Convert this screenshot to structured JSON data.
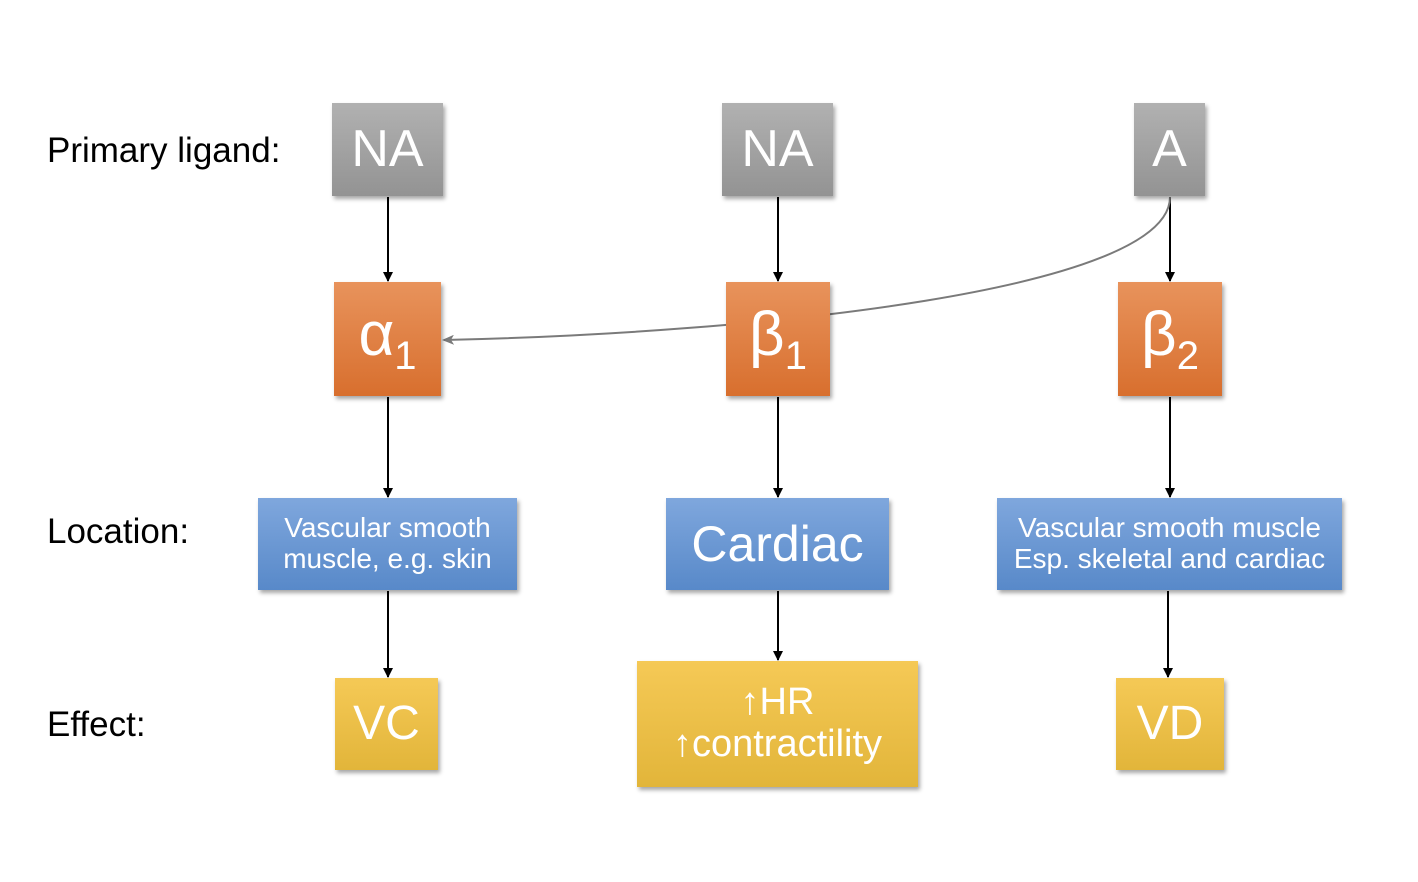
{
  "row_labels": {
    "ligand": "Primary ligand:",
    "location": "Location:",
    "effect": "Effect:"
  },
  "columns": [
    {
      "ligand": "NA",
      "receptor": "α",
      "receptor_sub": "1",
      "location": [
        "Vascular smooth",
        "muscle, e.g. skin"
      ],
      "effect": [
        "VC"
      ]
    },
    {
      "ligand": "NA",
      "receptor": "β",
      "receptor_sub": "1",
      "location": [
        "Cardiac"
      ],
      "effect": [
        "↑HR",
        "↑contractility"
      ]
    },
    {
      "ligand": "A",
      "receptor": "β",
      "receptor_sub": "2",
      "location": [
        "Vascular smooth muscle",
        "Esp. skeletal and cardiac"
      ],
      "effect": [
        "VD"
      ]
    }
  ],
  "colors": {
    "ligand": "#a3a3a3",
    "receptor": "#e07f45",
    "location": "#6b98d3",
    "effect": "#ecc048",
    "arrow": "#000000",
    "cross_arrow": "#7a7a7a"
  }
}
